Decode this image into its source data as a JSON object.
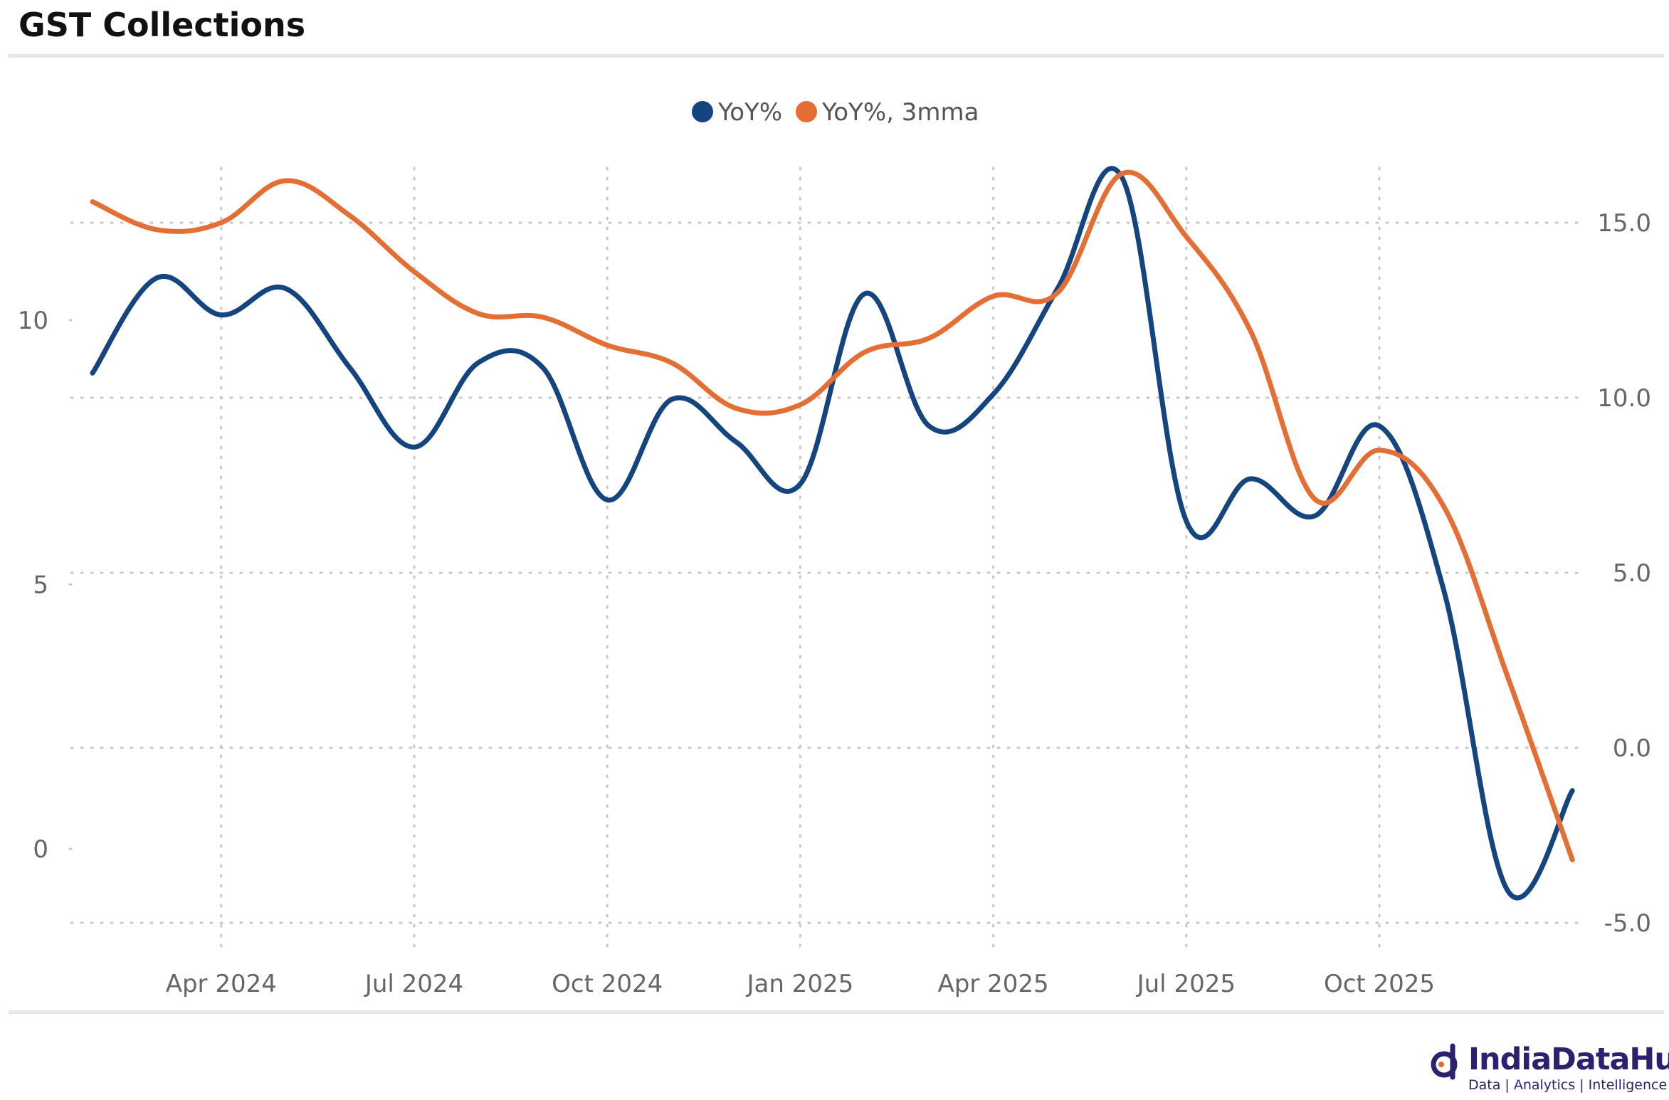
{
  "title": "GST Collections",
  "colors": {
    "series1": "#15457f",
    "series2": "#e36f35",
    "grid": "#c8c8c8",
    "brand": "#2a2270"
  },
  "brand": {
    "name": "IndiaDataHub",
    "tagline": "Data | Analytics | Intelligence"
  },
  "chart_data": {
    "type": "line",
    "legend": {
      "position": "top-center",
      "entries": [
        "YoY%",
        "YoY%, 3mma"
      ]
    },
    "grid": true,
    "x_ticks": [
      "Apr 2024",
      "Jul 2024",
      "Oct 2024",
      "Jan 2025",
      "Apr 2025",
      "Jul 2025",
      "Oct 2025"
    ],
    "x": [
      "2024-02",
      "2024-03",
      "2024-04",
      "2024-05",
      "2024-06",
      "2024-07",
      "2024-08",
      "2024-09",
      "2024-10",
      "2024-11",
      "2024-12",
      "2025-01",
      "2025-02",
      "2025-03",
      "2025-04",
      "2025-05",
      "2025-06",
      "2025-07",
      "2025-08",
      "2025-09",
      "2025-10",
      "2025-11",
      "2025-12",
      "2026-01"
    ],
    "y_left": {
      "ticks": [
        0,
        5,
        10
      ],
      "range": [
        -1.4,
        13.5
      ]
    },
    "y_right": {
      "ticks": [
        "-5.0",
        "0.0",
        "5.0",
        "10.0",
        "15.0"
      ],
      "range": [
        -5.0,
        17.5
      ]
    },
    "series": [
      {
        "name": "YoY%",
        "axis": "left",
        "values": [
          9.0,
          10.8,
          10.1,
          10.6,
          9.1,
          7.6,
          9.2,
          9.1,
          6.6,
          8.5,
          7.7,
          6.9,
          10.5,
          8.0,
          8.6,
          10.6,
          12.7,
          6.2,
          7.0,
          6.3,
          8.0,
          4.9,
          -0.8,
          1.1
        ]
      },
      {
        "name": "YoY%, 3mma",
        "axis": "right",
        "values": [
          15.6,
          14.8,
          15.0,
          16.2,
          15.2,
          13.6,
          12.4,
          12.3,
          11.5,
          11.0,
          9.7,
          9.8,
          11.3,
          11.7,
          12.9,
          13.0,
          16.4,
          14.6,
          11.9,
          7.1,
          8.5,
          6.9,
          2.0,
          -3.2
        ]
      }
    ]
  }
}
